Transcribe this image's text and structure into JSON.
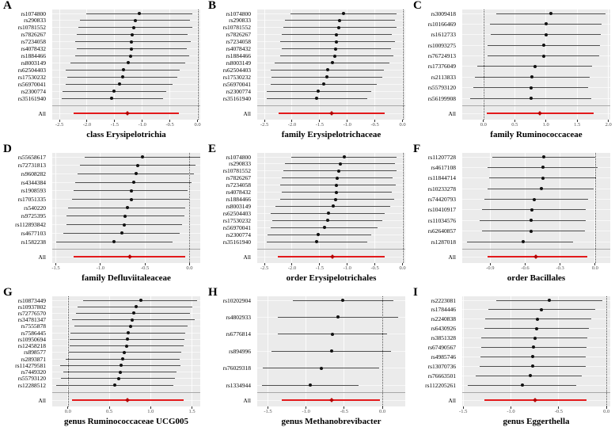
{
  "figure": {
    "description": "3x3 grid of forest plots of SNP effect estimates with confidence intervals and pooled (All) estimate per gut microbiota taxon",
    "colors": {
      "plot_bg": "#ebebeb",
      "ci_color": "#4f4f4f",
      "point_color": "#111111",
      "all_color": "#e31a1c",
      "all_point_color": "#b30000",
      "ref_line_color": "#4a4a4a",
      "separator_color": "#a8a8a8",
      "tick_text_color": "#4d4d4d"
    },
    "all_row_label": "All"
  },
  "chart_data": [
    {
      "type": "scatter",
      "style": "forest-plot",
      "panel": "A",
      "title": "class Erysipelotrichia",
      "xlim": [
        -2.63,
        0.05
      ],
      "xticks": [
        -2.5,
        -2.0,
        -1.5,
        -1.0,
        -0.5,
        0.0
      ],
      "ref_line": 0.0,
      "rows": [
        [
          "rs1074800",
          -2.02,
          -1.06,
          -0.1
        ],
        [
          "rs290833",
          -2.13,
          -1.13,
          -0.13
        ],
        [
          "rs10781552",
          -2.15,
          -1.15,
          -0.1
        ],
        [
          "rs7826267",
          -2.18,
          -1.18,
          -0.18
        ],
        [
          "rs7234058",
          -2.22,
          -1.19,
          -0.12
        ],
        [
          "rs4078432",
          -2.18,
          -1.2,
          -0.2
        ],
        [
          "rs1884466",
          -2.22,
          -1.21,
          -0.15
        ],
        [
          "rs8003149",
          -2.3,
          -1.26,
          -0.22
        ],
        [
          "rs62504403",
          -2.38,
          -1.34,
          -0.32
        ],
        [
          "rs17530232",
          -2.36,
          -1.36,
          -0.36
        ],
        [
          "rs56970041",
          -2.38,
          -1.41,
          -0.45
        ],
        [
          "rs2300774",
          -2.45,
          -1.51,
          -0.57
        ],
        [
          "rs35161940",
          -2.46,
          -1.55,
          -0.63
        ]
      ],
      "all": [
        "All",
        -2.25,
        -1.27,
        -0.33
      ]
    },
    {
      "type": "scatter",
      "style": "forest-plot",
      "panel": "B",
      "title": "family Erysipelotrichaceae",
      "xlim": [
        -2.63,
        0.05
      ],
      "xticks": [
        -2.5,
        -2.0,
        -1.5,
        -1.0,
        -0.5,
        0.0
      ],
      "ref_line": 0.0,
      "rows": [
        [
          "rs1074800",
          -2.03,
          -1.07,
          -0.11
        ],
        [
          "rs290833",
          -2.13,
          -1.14,
          -0.14
        ],
        [
          "rs10781552",
          -2.16,
          -1.16,
          -0.11
        ],
        [
          "rs7826267",
          -2.18,
          -1.19,
          -0.19
        ],
        [
          "rs7234058",
          -2.22,
          -1.2,
          -0.13
        ],
        [
          "rs4078432",
          -2.19,
          -1.21,
          -0.21
        ],
        [
          "rs1884466",
          -2.22,
          -1.22,
          -0.16
        ],
        [
          "rs8003149",
          -2.31,
          -1.27,
          -0.23
        ],
        [
          "rs62504403",
          -2.39,
          -1.35,
          -0.33
        ],
        [
          "rs17530232",
          -2.37,
          -1.37,
          -0.37
        ],
        [
          "rs56970041",
          -2.39,
          -1.42,
          -0.46
        ],
        [
          "rs2300774",
          -2.46,
          -1.52,
          -0.56
        ],
        [
          "rs35161940",
          -2.46,
          -1.56,
          -0.64
        ]
      ],
      "all": [
        "All",
        -2.25,
        -1.28,
        -0.32
      ]
    },
    {
      "type": "scatter",
      "style": "forest-plot",
      "panel": "C",
      "title": "family Ruminococcaceae",
      "xlim": [
        -0.34,
        2.03
      ],
      "xticks": [
        0.0,
        0.5,
        1.0,
        1.5,
        2.0
      ],
      "ref_line": 0.0,
      "rows": [
        [
          "rs3009418",
          0.2,
          1.08,
          1.95
        ],
        [
          "rs10166469",
          0.1,
          1.0,
          1.89
        ],
        [
          "rs1612733",
          0.12,
          1.0,
          1.88
        ],
        [
          "rs10093275",
          0.07,
          0.97,
          1.86
        ],
        [
          "rs76724913",
          0.06,
          0.96,
          1.85
        ],
        [
          "rs17376049",
          -0.1,
          0.82,
          1.74
        ],
        [
          "rs2113833",
          -0.14,
          0.78,
          1.7
        ],
        [
          "rs55793120",
          -0.16,
          0.76,
          1.68
        ],
        [
          "rs56199908",
          -0.21,
          0.76,
          1.72
        ]
      ],
      "all": [
        "All",
        0.05,
        0.9,
        1.77
      ]
    },
    {
      "type": "scatter",
      "style": "forest-plot",
      "panel": "D",
      "title": "family Defluviitaleaceae",
      "xlim": [
        -1.54,
        0.12
      ],
      "xticks": [
        -1.5,
        -1.0,
        -0.5,
        0.0
      ],
      "ref_line": 0.0,
      "rows": [
        [
          "rs55658617",
          -1.18,
          -0.53,
          0.12
        ],
        [
          "rs72731813",
          -1.23,
          -0.58,
          0.07
        ],
        [
          "rs9608282",
          -1.26,
          -0.6,
          0.05
        ],
        [
          "rs4344384",
          -1.28,
          -0.63,
          0.02
        ],
        [
          "rs1908593",
          -1.3,
          -0.65,
          -0.02
        ],
        [
          "rs17051335",
          -1.32,
          -0.65,
          0.0
        ],
        [
          "rs540220",
          -1.36,
          -0.7,
          -0.05
        ],
        [
          "rs9725395",
          -1.38,
          -0.72,
          -0.06
        ],
        [
          "rs112893842",
          -1.38,
          -0.73,
          -0.08
        ],
        [
          "rs4677103",
          -1.42,
          -0.76,
          -0.11
        ],
        [
          "rs1582238",
          -1.5,
          -0.85,
          -0.19
        ]
      ],
      "all": [
        "All",
        -1.3,
        -0.67,
        -0.05
      ]
    },
    {
      "type": "scatter",
      "style": "forest-plot",
      "panel": "E",
      "title": "order Erysipelotrichales",
      "xlim": [
        -2.63,
        0.05
      ],
      "xticks": [
        -2.5,
        -2.0,
        -1.5,
        -1.0,
        -0.5,
        0.0
      ],
      "ref_line": 0.0,
      "rows": [
        [
          "rs1074800",
          -2.02,
          -1.06,
          -0.11
        ],
        [
          "rs290833",
          -2.13,
          -1.13,
          -0.13
        ],
        [
          "rs10781552",
          -2.15,
          -1.15,
          -0.11
        ],
        [
          "rs7826267",
          -2.18,
          -1.18,
          -0.18
        ],
        [
          "rs7234058",
          -2.22,
          -1.19,
          -0.12
        ],
        [
          "rs4078432",
          -2.18,
          -1.2,
          -0.2
        ],
        [
          "rs1884466",
          -2.22,
          -1.21,
          -0.15
        ],
        [
          "rs8003149",
          -2.3,
          -1.26,
          -0.22
        ],
        [
          "rs62504403",
          -2.38,
          -1.34,
          -0.32
        ],
        [
          "rs17530232",
          -2.36,
          -1.36,
          -0.36
        ],
        [
          "rs56970041",
          -2.38,
          -1.41,
          -0.45
        ],
        [
          "rs2300774",
          -2.45,
          -1.52,
          -0.57
        ],
        [
          "rs35161940",
          -2.46,
          -1.55,
          -0.64
        ]
      ],
      "all": [
        "All",
        -2.26,
        -1.27,
        -0.32
      ]
    },
    {
      "type": "scatter",
      "style": "forest-plot",
      "panel": "F",
      "title": "order Bacillales",
      "xlim": [
        -1.14,
        0.13
      ],
      "xticks": [
        -0.9,
        -0.6,
        -0.3,
        0.0
      ],
      "ref_line": 0.0,
      "rows": [
        [
          "rs11207728",
          -0.88,
          -0.44,
          0.0
        ],
        [
          "rs4617108",
          -0.92,
          -0.45,
          0.02
        ],
        [
          "rs11844714",
          -0.91,
          -0.45,
          0.01
        ],
        [
          "rs10233278",
          -0.92,
          -0.46,
          -0.01
        ],
        [
          "rs74420793",
          -0.95,
          -0.52,
          -0.06
        ],
        [
          "rs10410917",
          -0.97,
          -0.54,
          -0.08
        ],
        [
          "rs11034576",
          -0.99,
          -0.55,
          -0.08
        ],
        [
          "rs62640857",
          -0.97,
          -0.55,
          -0.09
        ],
        [
          "rs1287018",
          -1.1,
          -0.62,
          -0.19
        ]
      ],
      "all": [
        "All",
        -0.92,
        -0.51,
        -0.07
      ]
    },
    {
      "type": "scatter",
      "style": "forest-plot",
      "panel": "G",
      "title": "genus Ruminococcaceae UCG005",
      "xlim": [
        -0.19,
        1.6
      ],
      "xticks": [
        0.0,
        0.5,
        1.0,
        1.5
      ],
      "ref_line": 0.0,
      "rows": [
        [
          "rs10873449",
          0.18,
          0.88,
          1.56
        ],
        [
          "rs10937802",
          0.12,
          0.82,
          1.5
        ],
        [
          "rs72776570",
          0.1,
          0.8,
          1.48
        ],
        [
          "rs34781347",
          0.05,
          0.78,
          1.53
        ],
        [
          "rs7555878",
          0.08,
          0.76,
          1.45
        ],
        [
          "rs7586445",
          0.03,
          0.73,
          1.42
        ],
        [
          "rs10950694",
          0.02,
          0.72,
          1.41
        ],
        [
          "rs12458218",
          0.02,
          0.71,
          1.4
        ],
        [
          "rs898577",
          0.0,
          0.68,
          1.37
        ],
        [
          "rs2893871",
          -0.03,
          0.66,
          1.35
        ],
        [
          "rs114279581",
          -0.09,
          0.64,
          1.36
        ],
        [
          "rs7449320",
          -0.06,
          0.63,
          1.31
        ],
        [
          "rs55793120",
          -0.08,
          0.61,
          1.29
        ],
        [
          "rs12288512",
          -0.14,
          0.57,
          1.27
        ]
      ],
      "all": [
        "All",
        0.05,
        0.72,
        1.4
      ]
    },
    {
      "type": "scatter",
      "style": "forest-plot",
      "panel": "H",
      "title": "genus Methanobrevibacter",
      "xlim": [
        -1.64,
        0.3
      ],
      "xticks": [
        -1.5,
        -1.0,
        -0.5,
        0.0
      ],
      "ref_line": 0.0,
      "rows": [
        [
          "rs10202904",
          -1.17,
          -0.52,
          0.14
        ],
        [
          "rs4802933",
          -1.37,
          -0.58,
          0.21
        ],
        [
          "rs6776814",
          -1.37,
          -0.65,
          0.06
        ],
        [
          "rs894996",
          -1.45,
          -0.67,
          0.11
        ],
        [
          "rs76029318",
          -1.57,
          -0.8,
          -0.04
        ],
        [
          "rs1334944",
          -1.58,
          -0.95,
          -0.31
        ]
      ],
      "all": [
        "All",
        -1.32,
        -0.67,
        -0.03
      ]
    },
    {
      "type": "scatter",
      "style": "forest-plot",
      "panel": "I",
      "title": "genus Eggerthella",
      "xlim": [
        -1.51,
        0.04
      ],
      "xticks": [
        -1.5,
        -1.0,
        -0.5,
        0.0
      ],
      "ref_line": 0.0,
      "rows": [
        [
          "rs2223081",
          -1.15,
          -0.6,
          -0.04
        ],
        [
          "rs1784446",
          -1.24,
          -0.68,
          -0.12
        ],
        [
          "rs2240838",
          -1.27,
          -0.72,
          -0.16
        ],
        [
          "rs6430926",
          -1.28,
          -0.73,
          -0.18
        ],
        [
          "rs3851328",
          -1.31,
          -0.75,
          -0.2
        ],
        [
          "rs67490567",
          -1.31,
          -0.76,
          -0.21
        ],
        [
          "rs4985746",
          -1.32,
          -0.77,
          -0.22
        ],
        [
          "rs13070736",
          -1.33,
          -0.77,
          -0.22
        ],
        [
          "rs76663501",
          -1.37,
          -0.8,
          -0.26
        ],
        [
          "rs112205261",
          -1.45,
          -0.88,
          -0.32
        ]
      ],
      "all": [
        "All",
        -1.28,
        -0.75,
        -0.21
      ]
    }
  ]
}
